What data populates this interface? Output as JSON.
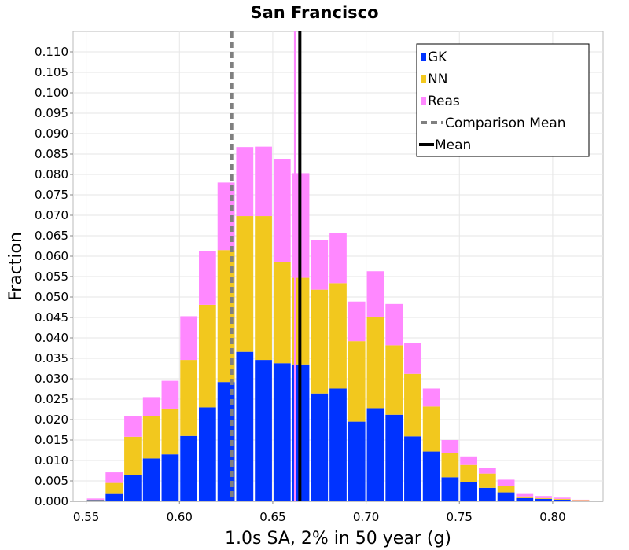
{
  "chart_data": {
    "type": "bar",
    "stacked": true,
    "title": "San Francisco",
    "xlabel": "1.0s SA, 2% in 50 year (g)",
    "ylabel": "Fraction",
    "xlim": [
      0.543,
      0.827
    ],
    "ylim": [
      0.0,
      0.115
    ],
    "bin_width": 0.01,
    "x_ticks": [
      0.55,
      0.6,
      0.65,
      0.7,
      0.75,
      0.8
    ],
    "x_tick_labels": [
      "0.55",
      "0.60",
      "0.65",
      "0.70",
      "0.75",
      "0.80"
    ],
    "y_ticks": [
      0.0,
      0.005,
      0.01,
      0.015,
      0.02,
      0.025,
      0.03,
      0.035,
      0.04,
      0.045,
      0.05,
      0.055,
      0.06,
      0.065,
      0.07,
      0.075,
      0.08,
      0.085,
      0.09,
      0.095,
      0.1,
      0.105,
      0.11
    ],
    "y_tick_labels": [
      "0.000",
      "0.005",
      "0.010",
      "0.015",
      "0.020",
      "0.025",
      "0.030",
      "0.035",
      "0.040",
      "0.045",
      "0.050",
      "0.055",
      "0.060",
      "0.065",
      "0.070",
      "0.075",
      "0.080",
      "0.085",
      "0.090",
      "0.095",
      "0.100",
      "0.105",
      "0.110"
    ],
    "bin_centers": [
      0.555,
      0.565,
      0.575,
      0.585,
      0.595,
      0.605,
      0.615,
      0.625,
      0.635,
      0.645,
      0.655,
      0.665,
      0.675,
      0.685,
      0.695,
      0.705,
      0.715,
      0.725,
      0.735,
      0.745,
      0.755,
      0.765,
      0.775,
      0.785,
      0.795,
      0.805,
      0.815
    ],
    "series": [
      {
        "name": "GK",
        "color": "#0033ff",
        "values": [
          0.0003,
          0.0018,
          0.0064,
          0.0105,
          0.0115,
          0.016,
          0.023,
          0.0292,
          0.0366,
          0.0346,
          0.0338,
          0.0335,
          0.0264,
          0.0276,
          0.0195,
          0.0228,
          0.0212,
          0.0159,
          0.0122,
          0.0059,
          0.0047,
          0.0033,
          0.0022,
          0.0008,
          0.0006,
          0.0004,
          0.0002
        ]
      },
      {
        "name": "NN",
        "color": "#f2c81e",
        "values": [
          0.0001,
          0.0027,
          0.0094,
          0.0103,
          0.0112,
          0.0186,
          0.0251,
          0.0323,
          0.0332,
          0.0352,
          0.0247,
          0.0212,
          0.0254,
          0.0258,
          0.0197,
          0.0224,
          0.017,
          0.0153,
          0.011,
          0.0059,
          0.0042,
          0.0035,
          0.0016,
          0.0004,
          0.0002,
          0.0002,
          0.0001
        ]
      },
      {
        "name": "Reas",
        "color": "#ff88ff",
        "values": [
          0.0003,
          0.0026,
          0.005,
          0.0047,
          0.0068,
          0.0107,
          0.0132,
          0.0165,
          0.0169,
          0.017,
          0.0253,
          0.0256,
          0.0122,
          0.0122,
          0.0097,
          0.0111,
          0.0101,
          0.0076,
          0.0044,
          0.0032,
          0.0021,
          0.0013,
          0.0015,
          0.0006,
          0.0005,
          0.0003,
          0.0001
        ]
      }
    ],
    "lines": [
      {
        "name": "Comparison Mean",
        "x": 0.628,
        "style": "dashed",
        "color": "#808080"
      },
      {
        "name": "Mean",
        "x": 0.6645,
        "style": "solid",
        "color": "#000000"
      },
      {
        "name": "Reas spike",
        "x": 0.662,
        "style": "solid",
        "color": "#ff88ff"
      }
    ],
    "legend": {
      "position": "top-right",
      "entries": [
        {
          "label": "GK",
          "kind": "box",
          "color": "#0033ff"
        },
        {
          "label": "NN",
          "kind": "box",
          "color": "#f2c81e"
        },
        {
          "label": "Reas",
          "kind": "box",
          "color": "#ff88ff"
        },
        {
          "label": "Comparison Mean",
          "kind": "dashed-line",
          "color": "#808080"
        },
        {
          "label": "Mean",
          "kind": "line",
          "color": "#000000"
        }
      ]
    },
    "grid": true
  }
}
